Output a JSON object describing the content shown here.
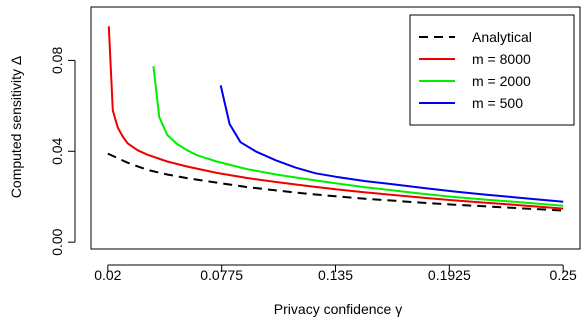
{
  "chart_data": {
    "type": "line",
    "title": "",
    "xlabel": "Privacy confidence γ",
    "ylabel": "Computed sensitivity Δ",
    "xlim": [
      0.0115,
      0.2585
    ],
    "ylim": [
      -0.003,
      0.1035
    ],
    "xticks": [
      0.02,
      0.0775,
      0.135,
      0.1925,
      0.25
    ],
    "xtick_labels": [
      "0.02",
      "0.0775",
      "0.135",
      "0.1925",
      "0.25"
    ],
    "yticks": [
      0.0,
      0.04,
      0.08
    ],
    "ytick_labels": [
      "0.00",
      "0.04",
      "0.08"
    ],
    "grid": false,
    "legend_position": "top-right",
    "series": [
      {
        "name": "Analytical",
        "color": "#000000",
        "dash": "dashed",
        "x": [
          0.02,
          0.03,
          0.04,
          0.05,
          0.06,
          0.075,
          0.09,
          0.105,
          0.12,
          0.135,
          0.15,
          0.165,
          0.18,
          0.195,
          0.21,
          0.225,
          0.25
        ],
        "y": [
          0.039,
          0.035,
          0.0318,
          0.0298,
          0.0282,
          0.0262,
          0.0243,
          0.0228,
          0.0214,
          0.0202,
          0.0191,
          0.0182,
          0.0173,
          0.0165,
          0.0158,
          0.0151,
          0.0139
        ]
      },
      {
        "name": "m = 8000",
        "color": "#ee0000",
        "dash": "solid",
        "x": [
          0.0205,
          0.0225,
          0.025,
          0.0275,
          0.03,
          0.035,
          0.04,
          0.05,
          0.06,
          0.075,
          0.09,
          0.105,
          0.12,
          0.135,
          0.15,
          0.165,
          0.18,
          0.195,
          0.21,
          0.225,
          0.25
        ],
        "y": [
          0.095,
          0.058,
          0.0505,
          0.0465,
          0.0435,
          0.0405,
          0.0385,
          0.0355,
          0.0333,
          0.0305,
          0.0283,
          0.0265,
          0.0248,
          0.0233,
          0.0219,
          0.0207,
          0.0195,
          0.0184,
          0.0174,
          0.0165,
          0.0148
        ]
      },
      {
        "name": "m = 2000",
        "color": "#00ee00",
        "dash": "solid",
        "x": [
          0.043,
          0.046,
          0.05,
          0.055,
          0.06,
          0.065,
          0.075,
          0.09,
          0.105,
          0.12,
          0.135,
          0.15,
          0.165,
          0.18,
          0.195,
          0.21,
          0.225,
          0.25
        ],
        "y": [
          0.0775,
          0.055,
          0.0472,
          0.0432,
          0.0405,
          0.0383,
          0.0355,
          0.0322,
          0.0298,
          0.0278,
          0.0259,
          0.0242,
          0.0227,
          0.0212,
          0.0199,
          0.0188,
          0.0178,
          0.016
        ]
      },
      {
        "name": "m = 500",
        "color": "#0000ee",
        "dash": "solid",
        "x": [
          0.077,
          0.0815,
          0.087,
          0.095,
          0.105,
          0.115,
          0.125,
          0.135,
          0.15,
          0.165,
          0.18,
          0.195,
          0.21,
          0.225,
          0.25
        ],
        "y": [
          0.069,
          0.052,
          0.044,
          0.0398,
          0.036,
          0.0328,
          0.0303,
          0.0288,
          0.0269,
          0.0254,
          0.0238,
          0.0223,
          0.021,
          0.0198,
          0.0178
        ]
      }
    ]
  }
}
